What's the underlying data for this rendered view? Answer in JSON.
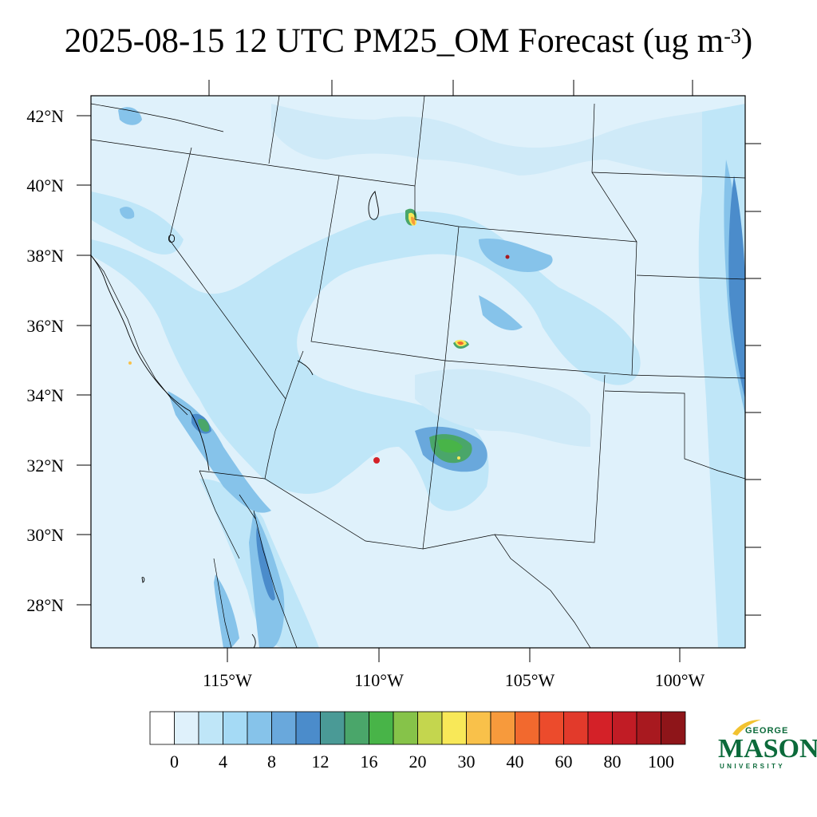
{
  "title": {
    "main": "2025-08-15 12 UTC PM25_OM Forecast (ug m",
    "sup": "-3",
    "close": ")"
  },
  "map": {
    "lat_labels": [
      "42°N",
      "40°N",
      "38°N",
      "36°N",
      "34°N",
      "32°N",
      "30°N",
      "28°N"
    ],
    "lon_labels": [
      "115°W",
      "110°W",
      "105°W",
      "100°W"
    ],
    "background_color": "#dff1fb",
    "border_color": "#000000"
  },
  "colorbar": {
    "colors": [
      "#ffffff",
      "#dff1fb",
      "#bfe6f8",
      "#a5daf5",
      "#86c3ea",
      "#69a8dc",
      "#4b8ccb",
      "#4a9a96",
      "#4aa66a",
      "#48b448",
      "#86c349",
      "#c4d64e",
      "#f8e858",
      "#f9c14a",
      "#f79a3c",
      "#f2692e",
      "#ec4b2c",
      "#e23a2b",
      "#d42128",
      "#c11c25",
      "#a8191f",
      "#8e1519"
    ],
    "labels": [
      "0",
      "4",
      "8",
      "12",
      "16",
      "20",
      "30",
      "40",
      "60",
      "80",
      "100"
    ]
  },
  "logo": {
    "george": "GEORGE",
    "mason": "MASON",
    "university": "UNIVERSITY",
    "color": "#0b6a3a",
    "accent": "#f2c230"
  }
}
